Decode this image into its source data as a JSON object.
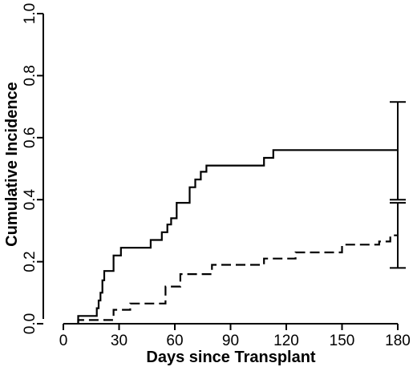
{
  "chart_data": {
    "type": "line",
    "xlabel": "Days since Transplant",
    "ylabel": "Cumulative Incidence",
    "xlim": [
      0,
      180
    ],
    "ylim": [
      0,
      1
    ],
    "x_ticks": [
      "0",
      "30",
      "60",
      "90",
      "120",
      "150",
      "180"
    ],
    "y_ticks": [
      "0.0",
      "0.2",
      "0.4",
      "0.6",
      "0.8",
      "1.0"
    ],
    "grid": false,
    "series": [
      {
        "style": "solid",
        "color": "#000000",
        "points": [
          [
            8,
            0.0
          ],
          [
            8,
            0.025
          ],
          [
            18,
            0.025
          ],
          [
            18,
            0.05
          ],
          [
            19,
            0.05
          ],
          [
            19,
            0.075
          ],
          [
            20,
            0.075
          ],
          [
            20,
            0.1
          ],
          [
            21,
            0.1
          ],
          [
            21,
            0.14
          ],
          [
            22,
            0.14
          ],
          [
            22,
            0.17
          ],
          [
            27,
            0.17
          ],
          [
            27,
            0.22
          ],
          [
            31,
            0.22
          ],
          [
            31,
            0.245
          ],
          [
            47,
            0.245
          ],
          [
            47,
            0.27
          ],
          [
            53,
            0.27
          ],
          [
            53,
            0.295
          ],
          [
            56,
            0.295
          ],
          [
            56,
            0.32
          ],
          [
            58,
            0.32
          ],
          [
            58,
            0.34
          ],
          [
            61,
            0.34
          ],
          [
            61,
            0.39
          ],
          [
            68,
            0.39
          ],
          [
            68,
            0.44
          ],
          [
            71,
            0.44
          ],
          [
            71,
            0.465
          ],
          [
            74,
            0.465
          ],
          [
            74,
            0.49
          ],
          [
            77,
            0.49
          ],
          [
            77,
            0.51
          ],
          [
            108,
            0.51
          ],
          [
            108,
            0.535
          ],
          [
            113,
            0.535
          ],
          [
            113,
            0.56
          ],
          [
            180,
            0.56
          ]
        ],
        "error_bar": {
          "x": 180,
          "low": 0.4,
          "high": 0.715
        }
      },
      {
        "style": "dashed",
        "color": "#000000",
        "points": [
          [
            8,
            0.0
          ],
          [
            8,
            0.012
          ],
          [
            18,
            0.012
          ],
          [
            27,
            0.012
          ],
          [
            27,
            0.045
          ],
          [
            33,
            0.045
          ],
          [
            36,
            0.045
          ],
          [
            36,
            0.065
          ],
          [
            55,
            0.065
          ],
          [
            55,
            0.12
          ],
          [
            63,
            0.12
          ],
          [
            63,
            0.16
          ],
          [
            80,
            0.16
          ],
          [
            80,
            0.19
          ],
          [
            108,
            0.19
          ],
          [
            108,
            0.21
          ],
          [
            125,
            0.21
          ],
          [
            125,
            0.23
          ],
          [
            150,
            0.23
          ],
          [
            150,
            0.255
          ],
          [
            170,
            0.255
          ],
          [
            170,
            0.265
          ],
          [
            176,
            0.265
          ],
          [
            176,
            0.285
          ],
          [
            180,
            0.285
          ]
        ],
        "error_bar": {
          "x": 180,
          "low": 0.18,
          "high": 0.39
        }
      }
    ]
  }
}
